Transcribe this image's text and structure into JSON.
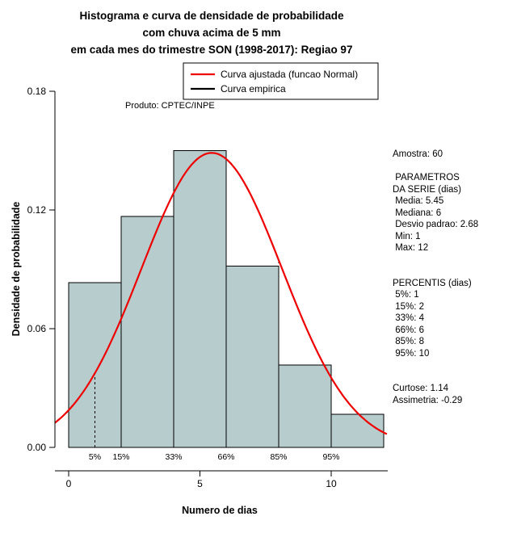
{
  "title": {
    "line1": "Histograma e curva de densidade de probabilidade",
    "line2": "com chuva acima de 5 mm",
    "line3": "em cada mes do trimestre SON (1998-2017): Regiao 97"
  },
  "product_label": "Produto: CPTEC/INPE",
  "legend": {
    "items": [
      {
        "label": "Curva ajustada (funcao Normal)",
        "color": "#ee0000"
      },
      {
        "label": "Curva empirica",
        "color": "#000000"
      }
    ]
  },
  "axes": {
    "x_label": "Numero de dias",
    "y_label": "Densidade de probabilidade",
    "x_ticks": [
      "0",
      "5",
      "10"
    ],
    "x_tick_values": [
      0,
      5,
      10
    ],
    "y_ticks": [
      "0.00",
      "0.06",
      "0.12",
      "0.18"
    ],
    "y_tick_values": [
      0,
      0.06,
      0.12,
      0.18
    ]
  },
  "chart_data": {
    "type": "histogram+line",
    "title": "Histograma e curva de densidade de probabilidade com chuva acima de 5 mm em cada mes do trimestre SON (1998-2017): Regiao 97",
    "xlabel": "Numero de dias",
    "ylabel": "Densidade de probabilidade",
    "xlim": [
      0,
      12
    ],
    "ylim": [
      0,
      0.18
    ],
    "sample_size": 60,
    "bins": [
      {
        "start": 0,
        "end": 2,
        "density": 0.0833
      },
      {
        "start": 2,
        "end": 4,
        "density": 0.1167
      },
      {
        "start": 4,
        "end": 6,
        "density": 0.15
      },
      {
        "start": 6,
        "end": 8,
        "density": 0.0917
      },
      {
        "start": 8,
        "end": 10,
        "density": 0.0417
      },
      {
        "start": 10,
        "end": 12,
        "density": 0.0167
      }
    ],
    "normal_curve": {
      "mean": 5.45,
      "sd": 2.68
    },
    "percentile_lines": [
      {
        "label": "5%",
        "x": 1
      },
      {
        "label": "15%",
        "x": 2
      },
      {
        "label": "33%",
        "x": 4
      },
      {
        "label": "66%",
        "x": 6
      },
      {
        "label": "85%",
        "x": 8
      },
      {
        "label": "95%",
        "x": 10
      }
    ],
    "colors": {
      "bar_fill": "#b7cdcd",
      "bar_stroke": "#000000",
      "curve": "#ee0000",
      "dashed": "#000000"
    }
  },
  "stats": {
    "lines": [
      "Amostra: 60",
      "",
      " PARAMETROS",
      "DA SERIE (dias)",
      " Media: 5.45",
      " Mediana: 6",
      " Desvio padrao: 2.68",
      " Min: 1",
      " Max: 12",
      "",
      "",
      "PERCENTIS (dias)",
      " 5%: 1",
      " 15%: 2",
      " 33%: 4",
      " 66%: 6",
      " 85%: 8",
      " 95%: 10",
      "",
      "",
      "Curtose: 1.14",
      "Assimetria: -0.29"
    ]
  }
}
